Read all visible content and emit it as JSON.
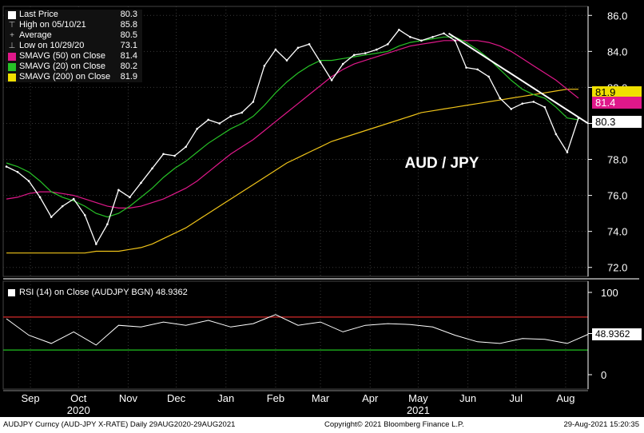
{
  "chart_data": {
    "type": "line",
    "title": "AUD / JPY",
    "price_panel": {
      "y_ticks": [
        "86.0",
        "84.0",
        "82.0",
        "80.0",
        "78.0",
        "76.0",
        "74.0",
        "72.0"
      ],
      "ylim": [
        71.5,
        86.5
      ],
      "dates": [
        "2020-08-31",
        "2020-09-07",
        "2020-09-14",
        "2020-09-21",
        "2020-09-28",
        "2020-10-05",
        "2020-10-12",
        "2020-10-19",
        "2020-10-26",
        "2020-11-02",
        "2020-11-09",
        "2020-11-16",
        "2020-11-23",
        "2020-11-30",
        "2020-12-07",
        "2020-12-14",
        "2020-12-21",
        "2020-12-28",
        "2021-01-04",
        "2021-01-11",
        "2021-01-18",
        "2021-01-25",
        "2021-02-01",
        "2021-02-08",
        "2021-02-15",
        "2021-02-22",
        "2021-03-01",
        "2021-03-08",
        "2021-03-15",
        "2021-03-22",
        "2021-03-29",
        "2021-04-05",
        "2021-04-12",
        "2021-04-19",
        "2021-04-26",
        "2021-05-03",
        "2021-05-10",
        "2021-05-17",
        "2021-05-24",
        "2021-05-31",
        "2021-06-07",
        "2021-06-14",
        "2021-06-21",
        "2021-06-28",
        "2021-07-05",
        "2021-07-12",
        "2021-07-19",
        "2021-07-26",
        "2021-08-02",
        "2021-08-09",
        "2021-08-16",
        "2021-08-23"
      ],
      "series": [
        {
          "name": "Last Price",
          "color": "#ffffff",
          "values": [
            77.6,
            77.3,
            76.8,
            75.9,
            74.8,
            75.4,
            75.8,
            74.9,
            73.3,
            74.4,
            76.3,
            75.9,
            76.7,
            77.5,
            78.3,
            78.2,
            78.7,
            79.7,
            80.2,
            80.0,
            80.4,
            80.6,
            81.2,
            83.2,
            84.1,
            83.5,
            84.2,
            84.4,
            83.4,
            82.4,
            83.3,
            83.8,
            83.9,
            84.1,
            84.4,
            85.2,
            84.8,
            84.6,
            84.8,
            85.0,
            84.6,
            83.1,
            83.0,
            82.6,
            81.4,
            80.8,
            81.1,
            81.2,
            80.9,
            79.4,
            78.4,
            80.3
          ]
        },
        {
          "name": "SMAVG (20) on Close",
          "color": "#27c227",
          "values": [
            77.8,
            77.6,
            77.3,
            76.8,
            76.2,
            75.9,
            75.7,
            75.4,
            75.0,
            74.8,
            75.0,
            75.4,
            75.9,
            76.4,
            77.0,
            77.5,
            77.9,
            78.4,
            78.9,
            79.3,
            79.7,
            80.0,
            80.4,
            81.0,
            81.7,
            82.3,
            82.8,
            83.2,
            83.5,
            83.5,
            83.6,
            83.7,
            83.8,
            83.9,
            84.0,
            84.3,
            84.5,
            84.6,
            84.7,
            84.8,
            84.8,
            84.5,
            84.1,
            83.6,
            83.0,
            82.4,
            81.9,
            81.6,
            81.4,
            80.9,
            80.3,
            80.2
          ]
        },
        {
          "name": "SMAVG (50) on Close",
          "color": "#e0188a",
          "values": [
            75.8,
            75.9,
            76.1,
            76.2,
            76.2,
            76.1,
            76.0,
            75.8,
            75.6,
            75.4,
            75.3,
            75.3,
            75.4,
            75.6,
            75.8,
            76.1,
            76.4,
            76.8,
            77.3,
            77.8,
            78.3,
            78.7,
            79.1,
            79.6,
            80.1,
            80.6,
            81.1,
            81.6,
            82.1,
            82.6,
            83.0,
            83.3,
            83.5,
            83.7,
            83.9,
            84.1,
            84.3,
            84.4,
            84.5,
            84.6,
            84.6,
            84.6,
            84.6,
            84.5,
            84.3,
            84.0,
            83.6,
            83.2,
            82.8,
            82.4,
            81.9,
            81.4
          ]
        },
        {
          "name": "SMAVG (200) on Close",
          "color": "#f0c419",
          "values": [
            72.8,
            72.8,
            72.8,
            72.8,
            72.8,
            72.8,
            72.8,
            72.8,
            72.9,
            72.9,
            72.9,
            73.0,
            73.1,
            73.3,
            73.6,
            73.9,
            74.2,
            74.6,
            75.0,
            75.4,
            75.8,
            76.2,
            76.6,
            77.0,
            77.4,
            77.8,
            78.1,
            78.4,
            78.7,
            79.0,
            79.2,
            79.4,
            79.6,
            79.8,
            80.0,
            80.2,
            80.4,
            80.6,
            80.7,
            80.8,
            80.9,
            81.0,
            81.1,
            81.2,
            81.3,
            81.4,
            81.5,
            81.6,
            81.7,
            81.8,
            81.9,
            81.9
          ]
        }
      ],
      "trendline": {
        "start": [
          "2021-06-03",
          85.0
        ],
        "end": [
          "2021-08-29",
          80.0
        ],
        "color": "#ffffff"
      }
    },
    "rsi_panel": {
      "y_ticks": [
        "100",
        "50",
        "0"
      ],
      "ylim": [
        0,
        100
      ],
      "overbought": 70,
      "oversold": 30,
      "dates": [
        "2020-08-31",
        "2020-09-14",
        "2020-09-28",
        "2020-10-12",
        "2020-10-26",
        "2020-11-09",
        "2020-11-23",
        "2020-12-07",
        "2020-12-21",
        "2021-01-04",
        "2021-01-18",
        "2021-02-01",
        "2021-02-15",
        "2021-03-01",
        "2021-03-15",
        "2021-03-29",
        "2021-04-12",
        "2021-04-26",
        "2021-05-10",
        "2021-05-24",
        "2021-06-07",
        "2021-06-21",
        "2021-07-05",
        "2021-07-19",
        "2021-08-02",
        "2021-08-16",
        "2021-08-29"
      ],
      "values": [
        68,
        48,
        38,
        52,
        36,
        60,
        58,
        64,
        60,
        66,
        58,
        62,
        73,
        60,
        64,
        52,
        60,
        62,
        61,
        58,
        48,
        40,
        38,
        44,
        43,
        38,
        49
      ]
    },
    "x_ticks": [
      {
        "label": "Sep",
        "date": "2020-09-15"
      },
      {
        "label": "Oct",
        "date": "2020-10-15"
      },
      {
        "label": "Nov",
        "date": "2020-11-15"
      },
      {
        "label": "Dec",
        "date": "2020-12-15"
      },
      {
        "label": "Jan",
        "date": "2021-01-15"
      },
      {
        "label": "Feb",
        "date": "2021-02-15"
      },
      {
        "label": "Mar",
        "date": "2021-03-15"
      },
      {
        "label": "Apr",
        "date": "2021-04-15"
      },
      {
        "label": "May",
        "date": "2021-05-15"
      },
      {
        "label": "Jun",
        "date": "2021-06-15"
      },
      {
        "label": "Jul",
        "date": "2021-07-15"
      },
      {
        "label": "Aug",
        "date": "2021-08-15"
      }
    ],
    "year_labels": [
      {
        "label": "2020",
        "date": "2020-10-15"
      },
      {
        "label": "2021",
        "date": "2021-05-15"
      }
    ],
    "date_range": [
      "2020-08-29",
      "2021-08-29"
    ],
    "price_tags": [
      {
        "label": "81.9",
        "value": 81.9,
        "bg": "#f0e000",
        "fg": "#000000"
      },
      {
        "label": "81.4",
        "value": 81.4,
        "bg": "#e0188a",
        "fg": "#ffffff"
      },
      {
        "label": "80.3",
        "value": 80.3,
        "bg": "#ffffff",
        "fg": "#000000"
      }
    ],
    "rsi_tag": {
      "label": "48.9362",
      "value": 48.9362
    }
  },
  "legend": [
    {
      "glyph": "",
      "color": "#ffffff",
      "label": "Last Price",
      "value": "80.3"
    },
    {
      "glyph": "⊤",
      "color": "",
      "label": "High on 05/10/21",
      "value": "85.8"
    },
    {
      "glyph": "+",
      "color": "",
      "label": "Average",
      "value": "80.5"
    },
    {
      "glyph": "⊥",
      "color": "",
      "label": "Low on 10/29/20",
      "value": "73.1"
    },
    {
      "glyph": "",
      "color": "#e0188a",
      "label": "SMAVG (50)  on Close",
      "value": "81.4"
    },
    {
      "glyph": "",
      "color": "#27c227",
      "label": "SMAVG (20)  on Close",
      "value": "80.2"
    },
    {
      "glyph": "",
      "color": "#f0e000",
      "label": "SMAVG (200)  on Close",
      "value": "81.9"
    }
  ],
  "rsi_label": "RSI (14)  on Close (AUDJPY BGN) 48.9362",
  "footer": {
    "left": "AUDJPY Curncy (AUD-JPY X-RATE)  Daily 29AUG2020-29AUG2021",
    "center": "Copyright© 2021 Bloomberg Finance L.P.",
    "right": "29-Aug-2021 15:20:35"
  }
}
